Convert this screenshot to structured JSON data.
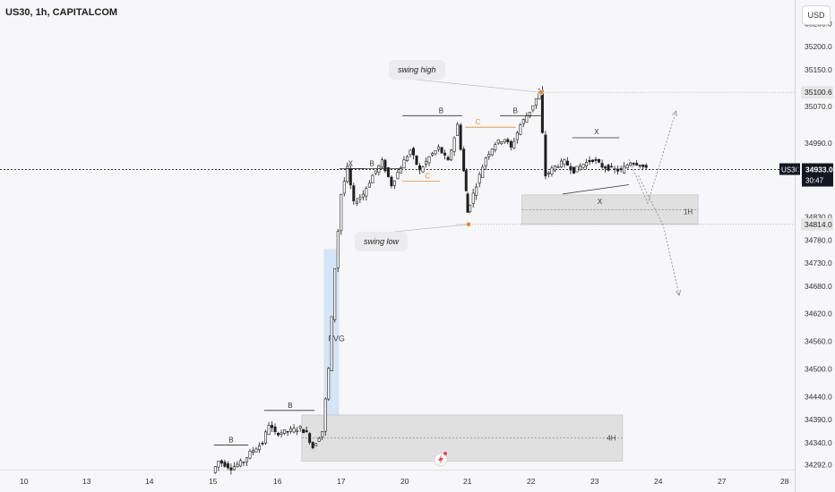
{
  "header": {
    "title": "US30, 1h, CAPITALCOM",
    "currency": "USD"
  },
  "colors": {
    "background": "#f7f6f8",
    "candle": "#1f1f1f",
    "fvg": "#cfe0f7",
    "zone": "#e0e0e0",
    "structure_orange": "#e08a3c",
    "price_label_dark": "#131722",
    "swing_point": "#e08a3c"
  },
  "chart_data": {
    "type": "candlestick",
    "title": "US30, 1h, CAPITALCOM",
    "symbol": "US30",
    "ylim": [
      34265,
      35290
    ],
    "xlim": [
      10,
      28.5
    ],
    "price_ticks": [
      35250.0,
      35200.0,
      35150.0,
      35070.0,
      34990.0,
      34830.0,
      34780.0,
      34730.0,
      34680.0,
      34620.0,
      34560.0,
      34500.0,
      34440.0,
      34390.0,
      34340.0,
      34292.0
    ],
    "date_ticks": [
      "10",
      "13",
      "14",
      "15",
      "16",
      "17",
      "20",
      "21",
      "22",
      "23",
      "24",
      "27",
      "28"
    ],
    "price_labels": [
      {
        "text": "35100.6",
        "price": 35100.6,
        "style": "light"
      },
      {
        "text": "34814.0",
        "price": 34814.0,
        "style": "light"
      }
    ],
    "current_price": {
      "symbol_label": "US30",
      "price_text": "34933.0",
      "countdown": "30:47",
      "price": 34933.0
    },
    "series_points": [
      [
        13.0,
        34275
      ],
      [
        13.1,
        34300
      ],
      [
        13.3,
        34285
      ],
      [
        13.5,
        34300
      ],
      [
        13.6,
        34318
      ],
      [
        13.8,
        34340
      ],
      [
        13.9,
        34380
      ],
      [
        14.0,
        34360
      ],
      [
        14.2,
        34365
      ],
      [
        14.4,
        34372
      ],
      [
        14.5,
        34360
      ],
      [
        14.6,
        34330
      ],
      [
        14.75,
        34365
      ],
      [
        14.85,
        34500
      ],
      [
        14.95,
        34720
      ],
      [
        15.05,
        34880
      ],
      [
        15.15,
        34935
      ],
      [
        15.25,
        34860
      ],
      [
        15.4,
        34880
      ],
      [
        15.55,
        34920
      ],
      [
        15.7,
        34950
      ],
      [
        15.85,
        34900
      ],
      [
        16.0,
        34940
      ],
      [
        16.15,
        34975
      ],
      [
        16.3,
        34930
      ],
      [
        16.45,
        34960
      ],
      [
        16.6,
        34980
      ],
      [
        16.75,
        34950
      ],
      [
        16.9,
        35030
      ],
      [
        17.0,
        34930
      ],
      [
        17.05,
        34840
      ],
      [
        17.2,
        34900
      ],
      [
        17.35,
        34960
      ],
      [
        17.5,
        34990
      ],
      [
        17.65,
        35000
      ],
      [
        17.75,
        34980
      ],
      [
        17.9,
        35030
      ],
      [
        18.05,
        35060
      ],
      [
        18.2,
        35100
      ],
      [
        18.3,
        34920
      ],
      [
        18.45,
        34940
      ],
      [
        18.6,
        34950
      ],
      [
        18.75,
        34930
      ],
      [
        18.9,
        34945
      ],
      [
        19.05,
        34955
      ],
      [
        19.2,
        34940
      ],
      [
        19.35,
        34935
      ],
      [
        19.5,
        34930
      ],
      [
        19.65,
        34950
      ],
      [
        19.8,
        34945
      ],
      [
        19.9,
        34933
      ]
    ],
    "annotations": [
      {
        "type": "label",
        "text": "swing high"
      },
      {
        "type": "label",
        "text": "swing low"
      },
      {
        "type": "label",
        "text": "FVG"
      },
      {
        "type": "label",
        "text": "1H"
      },
      {
        "type": "label",
        "text": "4H"
      },
      {
        "type": "label",
        "text": "B"
      },
      {
        "type": "label",
        "text": "C"
      },
      {
        "type": "label",
        "text": "X"
      }
    ],
    "zones": [
      {
        "name": "FVG",
        "x_range": [
          14.75,
          14.99
        ],
        "price_range": [
          34345,
          34760
        ]
      },
      {
        "name": "1H",
        "x_range": [
          17.9,
          20.7
        ],
        "price_range": [
          34814,
          34878
        ]
      },
      {
        "name": "4H",
        "x_range": [
          14.4,
          19.5
        ],
        "price_range": [
          34300,
          34400
        ]
      }
    ],
    "projections": [
      {
        "path": [
          [
            19.6,
            34955
          ],
          [
            19.9,
            34860
          ],
          [
            20.35,
            35060
          ]
        ],
        "style": "dashed"
      },
      {
        "path": [
          [
            19.75,
            34920
          ],
          [
            20.15,
            34810
          ],
          [
            20.4,
            34660
          ]
        ],
        "style": "dashed"
      }
    ]
  },
  "labels": {
    "swing_high": "swing high",
    "swing_low": "swing low",
    "fvg": "FVG",
    "h1": "1H",
    "h4": "4H",
    "b": "B",
    "c": "C",
    "x": "X"
  }
}
